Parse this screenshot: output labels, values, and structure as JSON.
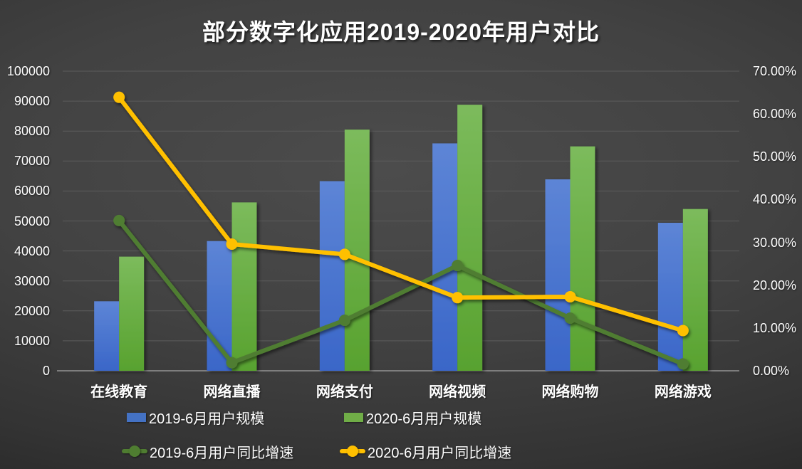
{
  "title": "部分数字化应用2019-2020年用户对比",
  "chart_data": {
    "type": "bar+line combo",
    "categories": [
      "在线教育",
      "网络直播",
      "网络支付",
      "网络视频",
      "网络购物",
      "网络游戏"
    ],
    "series": [
      {
        "name": "2019-6月用户规模",
        "type": "bar",
        "axis": "left",
        "color": "#4472C4",
        "gradient_top": "#5d85d6",
        "gradient_bottom": "#3a66c8",
        "values": [
          23200,
          43300,
          63300,
          75900,
          63900,
          49400
        ]
      },
      {
        "name": "2020-6月用户规模",
        "type": "bar",
        "axis": "left",
        "color": "#70AD47",
        "gradient_top": "#7cbb5c",
        "gradient_bottom": "#58a22f",
        "values": [
          38100,
          56200,
          80500,
          88800,
          74900,
          54000
        ]
      },
      {
        "name": "2019-6月用户同比增速",
        "type": "line",
        "axis": "right",
        "color": "#4F7D31",
        "values": [
          35.1,
          1.9,
          11.8,
          24.6,
          12.3,
          1.6
        ],
        "unit": "%"
      },
      {
        "name": "2020-6月用户同比增速",
        "type": "line",
        "axis": "right",
        "color": "#FFC000",
        "values": [
          63.9,
          29.6,
          27.2,
          17.1,
          17.3,
          9.4
        ],
        "unit": "%"
      }
    ],
    "left_axis": {
      "min": 0,
      "max": 100000,
      "step": 10000,
      "tick_labels": [
        "0",
        "10000",
        "20000",
        "30000",
        "40000",
        "50000",
        "60000",
        "70000",
        "80000",
        "90000",
        "100000"
      ]
    },
    "right_axis": {
      "min": 0,
      "max": 70,
      "step": 10,
      "tick_labels": [
        "0.00%",
        "10.00%",
        "20.00%",
        "30.00%",
        "40.00%",
        "50.00%",
        "60.00%",
        "70.00%"
      ]
    },
    "grid": "horizontal",
    "legend_position": "bottom",
    "background": "#3d3d3d",
    "text_color": "#ffffff",
    "gridline_color": "#5c5c5c",
    "axis_line_color": "#949494"
  }
}
